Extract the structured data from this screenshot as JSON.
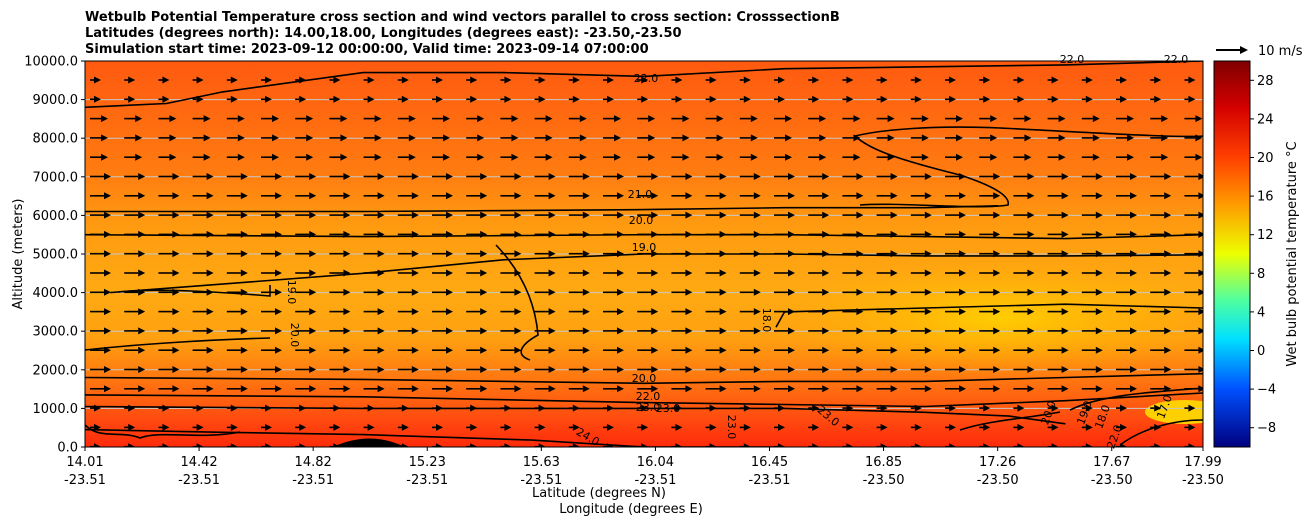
{
  "chart_data": {
    "type": "heatmap",
    "title_lines": [
      "Wetbulb Potential Temperature cross section and wind vectors parallel to cross section: CrosssectionB",
      "Latitudes (degrees north): 14.00,18.00, Longitudes (degrees east): -23.50,-23.50",
      "Simulation start time: 2023-09-12 00:00:00, Valid time: 2023-09-14 07:00:00"
    ],
    "xlabel": "Latitude (degrees N)",
    "xlabel2": "Longitude (degrees E)",
    "ylabel": "Altitude (meters)",
    "colorbar_label": "Wet bulb potential temperature $^\\circ$C",
    "colorbar_label_display": "Wet bulb potential temperature °C",
    "quiver_key_label": "10 m/s",
    "x_ticks": [
      {
        "lat": "14.01",
        "lon": "-23.51"
      },
      {
        "lat": "14.42",
        "lon": "-23.51"
      },
      {
        "lat": "14.82",
        "lon": "-23.51"
      },
      {
        "lat": "15.23",
        "lon": "-23.51"
      },
      {
        "lat": "15.63",
        "lon": "-23.51"
      },
      {
        "lat": "16.04",
        "lon": "-23.51"
      },
      {
        "lat": "16.45",
        "lon": "-23.51"
      },
      {
        "lat": "16.85",
        "lon": "-23.50"
      },
      {
        "lat": "17.26",
        "lon": "-23.50"
      },
      {
        "lat": "17.67",
        "lon": "-23.50"
      },
      {
        "lat": "17.99",
        "lon": "-23.50"
      }
    ],
    "y_ticks": [
      "0.0",
      "1000.0",
      "2000.0",
      "3000.0",
      "4000.0",
      "5000.0",
      "6000.0",
      "7000.0",
      "8000.0",
      "9000.0",
      "10000.0"
    ],
    "ylim": [
      0,
      10000
    ],
    "xlim": [
      14.01,
      17.99
    ],
    "colorbar_ticks": [
      "28",
      "24",
      "20",
      "16",
      "12",
      "8",
      "4",
      "0",
      "−4",
      "−8"
    ],
    "colorbar_range": [
      -10,
      30
    ],
    "contour_labels": [
      "22.0",
      "22.0",
      "22.0",
      "21.0",
      "20.0",
      "19.0",
      "19.0",
      "20.0",
      "18.0",
      "20.0",
      "22.0",
      "23.0",
      "23.0",
      "23.0",
      "23.0",
      "24.0",
      "20.0",
      "19.0",
      "18.0",
      "17.0",
      "22.0"
    ],
    "contours": [
      {
        "level": 18,
        "lat": [
          16.47,
          16.5,
          17.0,
          17.5,
          17.99
        ],
        "alt": [
          3100,
          3500,
          3600,
          3700,
          3600
        ]
      },
      {
        "level": 19,
        "lat": [
          14.1,
          15.0,
          15.5,
          16.0,
          16.5,
          17.0,
          17.5,
          17.99
        ],
        "alt": [
          4000,
          4500,
          4850,
          5000,
          5000,
          4950,
          4950,
          4980
        ]
      },
      {
        "level": 20,
        "lat": [
          14.01,
          15.0,
          16.0,
          16.5,
          17.0,
          17.5,
          17.99
        ],
        "alt": [
          5500,
          5450,
          5500,
          5500,
          5450,
          5400,
          5500
        ]
      },
      {
        "level": 21,
        "lat": [
          14.01,
          15.0,
          16.0,
          16.5,
          17.0,
          17.26
        ],
        "alt": [
          6100,
          6100,
          6150,
          6200,
          6200,
          6250
        ]
      },
      {
        "level": 22,
        "lat": [
          14.01,
          14.3,
          14.5,
          15.0,
          15.5,
          16.0,
          16.5,
          17.0,
          17.5,
          17.99
        ],
        "alt": [
          8800,
          8900,
          9200,
          9700,
          9700,
          9600,
          9800,
          9850,
          9900,
          10000
        ]
      },
      {
        "level": 20,
        "lat": [
          14.01,
          15.0,
          16.0,
          16.5,
          17.0,
          17.5,
          17.99
        ],
        "alt": [
          1800,
          1750,
          1650,
          1700,
          1700,
          1800,
          1900
        ]
      },
      {
        "level": 22,
        "lat": [
          14.01,
          15.0,
          16.0,
          16.5,
          17.0,
          17.5,
          17.99
        ],
        "alt": [
          1350,
          1300,
          1150,
          1100,
          1050,
          1200,
          1400
        ]
      },
      {
        "level": 23,
        "lat": [
          14.01,
          15.0,
          16.0,
          16.5,
          17.0,
          17.3,
          17.5
        ],
        "alt": [
          1050,
          1000,
          1000,
          1000,
          900,
          800,
          600
        ]
      },
      {
        "level": 24,
        "lat": [
          14.01,
          14.5,
          15.0,
          15.6,
          16.0,
          16.5
        ],
        "alt": [
          450,
          380,
          320,
          180,
          0,
          0
        ]
      }
    ]
  }
}
